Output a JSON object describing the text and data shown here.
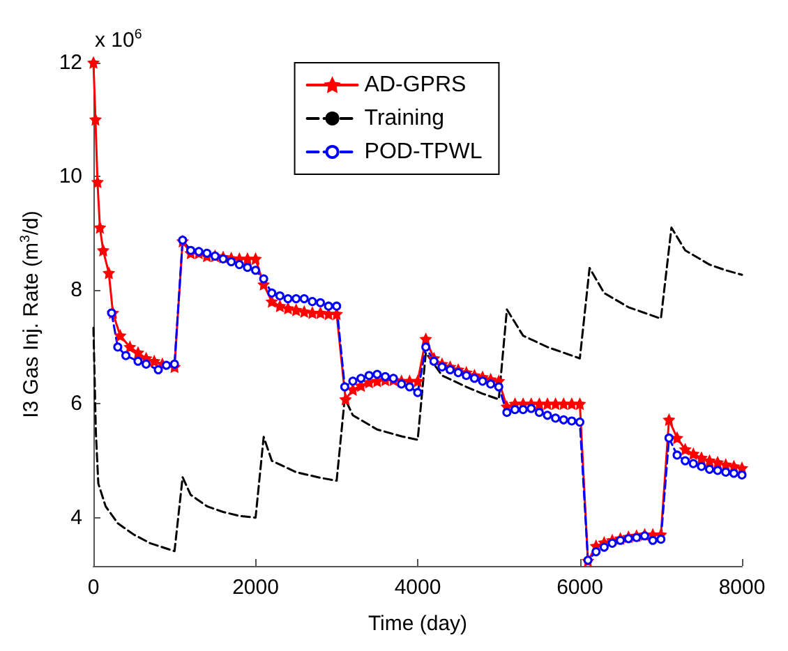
{
  "chart_data": {
    "type": "line",
    "xlabel": "Time (day)",
    "ylabel": "I3 Gas Inj. Rate (m$^{3}$/d)",
    "annotations": [
      "x 10$^{6}$"
    ],
    "xlim": [
      0,
      8000
    ],
    "xticks": [
      0,
      2000,
      4000,
      6000,
      8000
    ],
    "ylim": [
      3.15,
      12
    ],
    "yticks": [
      4,
      6,
      8,
      10,
      12
    ],
    "grid": false,
    "legend": "top",
    "series": [
      {
        "name": "AD-GPRS",
        "color": "#ff0000",
        "marker": "star",
        "line_style": "solid",
        "x": [
          0,
          25,
          50,
          80,
          120,
          190,
          240,
          330,
          450,
          550,
          650,
          750,
          850,
          1000,
          1100,
          1200,
          1300,
          1400,
          1500,
          1600,
          1700,
          1800,
          1900,
          2000,
          2100,
          2200,
          2300,
          2400,
          2500,
          2600,
          2700,
          2800,
          2900,
          3000,
          3110,
          3200,
          3300,
          3400,
          3500,
          3600,
          3700,
          3800,
          3900,
          4000,
          4100,
          4200,
          4300,
          4400,
          4500,
          4600,
          4700,
          4800,
          4900,
          5000,
          5100,
          5200,
          5300,
          5400,
          5500,
          5600,
          5700,
          5800,
          5900,
          6000,
          6100,
          6200,
          6300,
          6400,
          6500,
          6600,
          6700,
          6800,
          6900,
          7000,
          7100,
          7200,
          7300,
          7400,
          7500,
          7600,
          7700,
          7800,
          7900,
          8000
        ],
        "values": [
          12.0,
          11.0,
          9.9,
          9.1,
          8.7,
          8.3,
          7.6,
          7.2,
          7.0,
          6.9,
          6.8,
          6.75,
          6.7,
          6.65,
          8.86,
          8.65,
          8.65,
          8.6,
          8.6,
          8.58,
          8.56,
          8.55,
          8.55,
          8.55,
          8.1,
          7.8,
          7.72,
          7.68,
          7.65,
          7.62,
          7.6,
          7.6,
          7.58,
          7.58,
          6.08,
          6.25,
          6.32,
          6.38,
          6.4,
          6.42,
          6.42,
          6.4,
          6.4,
          6.4,
          7.14,
          6.8,
          6.7,
          6.65,
          6.6,
          6.55,
          6.5,
          6.47,
          6.43,
          6.4,
          5.95,
          6.0,
          6.0,
          6.0,
          6.0,
          6.0,
          6.0,
          6.0,
          6.0,
          6.0,
          3.24,
          3.5,
          3.56,
          3.6,
          3.63,
          3.66,
          3.68,
          3.7,
          3.7,
          3.7,
          5.72,
          5.4,
          5.2,
          5.12,
          5.05,
          5.0,
          4.97,
          4.93,
          4.9,
          4.87
        ]
      },
      {
        "name": "Training",
        "color": "#000000",
        "marker": "none",
        "line_style": "dashed",
        "x": [
          0,
          30,
          60,
          150,
          300,
          500,
          700,
          1000,
          1100,
          1200,
          1400,
          1600,
          1800,
          2000,
          2100,
          2200,
          2500,
          2800,
          3000,
          3100,
          3200,
          3500,
          3800,
          4000,
          4100,
          4300,
          4600,
          4800,
          5000,
          5100,
          5300,
          5600,
          5800,
          6000,
          6120,
          6300,
          6600,
          6800,
          7000,
          7130,
          7300,
          7600,
          7800,
          8000
        ],
        "values": [
          7.34,
          5.5,
          4.6,
          4.2,
          3.9,
          3.7,
          3.55,
          3.41,
          4.71,
          4.4,
          4.2,
          4.1,
          4.03,
          4.0,
          5.42,
          5.0,
          4.8,
          4.7,
          4.65,
          6.1,
          5.8,
          5.55,
          5.43,
          5.37,
          6.9,
          6.5,
          6.3,
          6.18,
          6.08,
          7.66,
          7.2,
          7.0,
          6.9,
          6.8,
          8.39,
          7.95,
          7.7,
          7.6,
          7.5,
          9.1,
          8.7,
          8.45,
          8.35,
          8.27
        ]
      },
      {
        "name": "POD-TPWL",
        "color": "#0000ff",
        "marker": "circle",
        "line_style": "dashed",
        "x": [
          224,
          300,
          400,
          550,
          650,
          800,
          900,
          1000,
          1100,
          1200,
          1300,
          1400,
          1500,
          1600,
          1700,
          1800,
          1900,
          2000,
          2100,
          2200,
          2300,
          2400,
          2500,
          2600,
          2700,
          2800,
          2900,
          3000,
          3100,
          3200,
          3300,
          3400,
          3500,
          3600,
          3700,
          3800,
          3900,
          4000,
          4100,
          4200,
          4300,
          4400,
          4500,
          4600,
          4700,
          4800,
          4900,
          5000,
          5100,
          5200,
          5300,
          5400,
          5500,
          5600,
          5700,
          5800,
          5900,
          6000,
          6100,
          6200,
          6300,
          6400,
          6500,
          6600,
          6700,
          6800,
          6900,
          7000,
          7100,
          7200,
          7300,
          7400,
          7500,
          7600,
          7700,
          7800,
          7900,
          8000
        ],
        "values": [
          7.6,
          7.0,
          6.85,
          6.75,
          6.7,
          6.6,
          6.68,
          6.7,
          8.88,
          8.7,
          8.68,
          8.65,
          8.6,
          8.55,
          8.5,
          8.45,
          8.4,
          8.35,
          8.2,
          7.95,
          7.9,
          7.85,
          7.85,
          7.85,
          7.8,
          7.78,
          7.72,
          7.72,
          6.3,
          6.4,
          6.45,
          6.5,
          6.52,
          6.48,
          6.45,
          6.35,
          6.3,
          6.2,
          7.0,
          6.75,
          6.65,
          6.6,
          6.55,
          6.5,
          6.45,
          6.4,
          6.35,
          6.3,
          5.85,
          5.9,
          5.9,
          5.92,
          5.85,
          5.8,
          5.75,
          5.72,
          5.7,
          5.68,
          3.25,
          3.4,
          3.48,
          3.55,
          3.6,
          3.63,
          3.65,
          3.68,
          3.6,
          3.62,
          5.4,
          5.1,
          5.0,
          4.95,
          4.9,
          4.85,
          4.83,
          4.8,
          4.78,
          4.75
        ]
      }
    ]
  }
}
